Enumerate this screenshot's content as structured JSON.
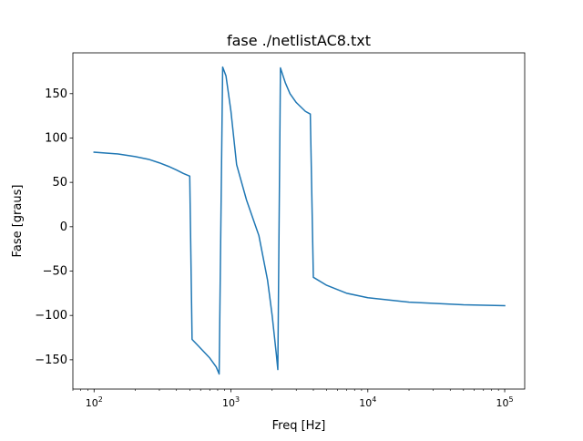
{
  "chart_data": {
    "type": "line",
    "title": "fase ./netlistAC8.txt",
    "xlabel": "Freq [Hz]",
    "ylabel": "Fase [graus]",
    "x_scale": "log",
    "xlim": [
      70,
      140000
    ],
    "ylim": [
      -183,
      196
    ],
    "x_ticks": [
      {
        "value": 100,
        "base": "10",
        "exp": "2"
      },
      {
        "value": 1000,
        "base": "10",
        "exp": "3"
      },
      {
        "value": 10000,
        "base": "10",
        "exp": "4"
      },
      {
        "value": 100000,
        "base": "10",
        "exp": "5"
      }
    ],
    "y_ticks": [
      {
        "value": 150,
        "label": "150"
      },
      {
        "value": 100,
        "label": "100"
      },
      {
        "value": 50,
        "label": "50"
      },
      {
        "value": 0,
        "label": "0"
      },
      {
        "value": -50,
        "label": "−50"
      },
      {
        "value": -100,
        "label": "−100"
      },
      {
        "value": -150,
        "label": "−150"
      }
    ],
    "grid": false,
    "legend": "none",
    "series": [
      {
        "color": "#1f77b4",
        "points": [
          [
            100,
            84
          ],
          [
            150,
            82
          ],
          [
            200,
            79
          ],
          [
            250,
            76
          ],
          [
            300,
            72
          ],
          [
            350,
            68
          ],
          [
            400,
            64
          ],
          [
            450,
            60
          ],
          [
            500,
            57
          ],
          [
            520,
            -127
          ],
          [
            600,
            -137
          ],
          [
            700,
            -148
          ],
          [
            780,
            -158
          ],
          [
            820,
            -166
          ],
          [
            870,
            180
          ],
          [
            920,
            170
          ],
          [
            1000,
            130
          ],
          [
            1100,
            70
          ],
          [
            1300,
            30
          ],
          [
            1600,
            -10
          ],
          [
            1850,
            -60
          ],
          [
            2000,
            -100
          ],
          [
            2150,
            -145
          ],
          [
            2200,
            -161
          ],
          [
            2300,
            179
          ],
          [
            2500,
            162
          ],
          [
            2700,
            150
          ],
          [
            3000,
            140
          ],
          [
            3500,
            130
          ],
          [
            3800,
            127
          ],
          [
            4000,
            -57
          ],
          [
            5000,
            -66
          ],
          [
            7000,
            -75
          ],
          [
            10000,
            -80
          ],
          [
            20000,
            -85
          ],
          [
            50000,
            -88
          ],
          [
            100000,
            -89
          ]
        ]
      }
    ]
  }
}
